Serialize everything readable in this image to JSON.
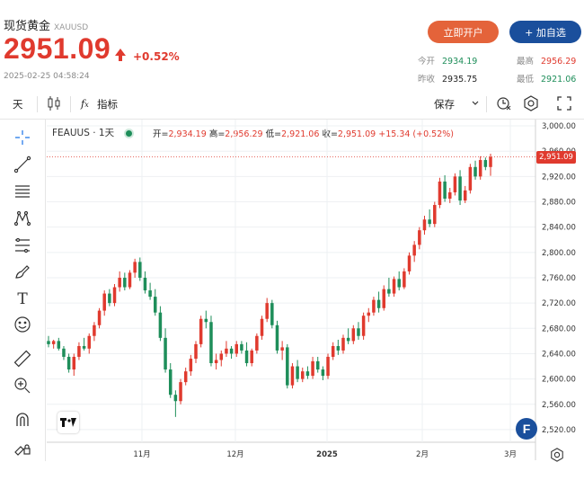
{
  "header": {
    "title": "现货黄金",
    "symbol": "XAUUSD",
    "price": "2951.09",
    "change": "+0.52%",
    "timestamp": "2025-02-25 04:58:24",
    "open_account_label": "立即开户",
    "watchlist_label": "+ 加自选",
    "stats": {
      "open_label": "今开",
      "open_value": "2934.19",
      "high_label": "最高",
      "high_value": "2956.29",
      "prev_label": "昨收",
      "prev_value": "2935.75",
      "low_label": "最低",
      "low_value": "2921.06"
    }
  },
  "toolbar": {
    "interval_label": "天",
    "indicators_label": "指标",
    "save_label": "保存"
  },
  "legend": {
    "symbol_label": "FEAUUS · 1天",
    "open_label": "开=",
    "open_value": "2,934.19",
    "high_label": "高=",
    "high_value": "2,956.29",
    "low_label": "低=",
    "low_value": "2,921.06",
    "close_label": "收=",
    "close_value": "2,951.09",
    "change_value": "+15.34 (+0.52%)"
  },
  "last_price_tag": "2,951.09",
  "colors": {
    "up": "#e03a2e",
    "down": "#1e8e5a",
    "accent": "#1a4f9c",
    "open_btn": "#e4633a"
  },
  "chart_data": {
    "type": "candlestick",
    "x_tick_labels": [
      "11月",
      "12月",
      "2025",
      "2月",
      "3月"
    ],
    "y_tick_labels": [
      "3,000.00",
      "2,960.00",
      "2,920.00",
      "2,880.00",
      "2,840.00",
      "2,800.00",
      "2,760.00",
      "2,720.00",
      "2,680.00",
      "2,640.00",
      "2,600.00",
      "2,560.00",
      "2,520.00"
    ],
    "ylim": [
      2500,
      3010
    ],
    "candles": [
      [
        2660,
        2668,
        2650,
        2655
      ],
      [
        2655,
        2662,
        2648,
        2660
      ],
      [
        2660,
        2665,
        2645,
        2648
      ],
      [
        2648,
        2652,
        2630,
        2635
      ],
      [
        2635,
        2640,
        2610,
        2615
      ],
      [
        2615,
        2640,
        2605,
        2635
      ],
      [
        2635,
        2658,
        2630,
        2652
      ],
      [
        2652,
        2665,
        2645,
        2648
      ],
      [
        2648,
        2672,
        2640,
        2668
      ],
      [
        2668,
        2690,
        2660,
        2685
      ],
      [
        2685,
        2712,
        2680,
        2708
      ],
      [
        2708,
        2740,
        2700,
        2735
      ],
      [
        2735,
        2742,
        2715,
        2720
      ],
      [
        2720,
        2750,
        2715,
        2745
      ],
      [
        2745,
        2770,
        2738,
        2760
      ],
      [
        2760,
        2768,
        2740,
        2745
      ],
      [
        2745,
        2772,
        2742,
        2768
      ],
      [
        2768,
        2790,
        2760,
        2785
      ],
      [
        2785,
        2792,
        2755,
        2760
      ],
      [
        2760,
        2770,
        2735,
        2740
      ],
      [
        2740,
        2752,
        2725,
        2730
      ],
      [
        2730,
        2742,
        2700,
        2705
      ],
      [
        2705,
        2715,
        2660,
        2665
      ],
      [
        2665,
        2680,
        2610,
        2615
      ],
      [
        2615,
        2625,
        2570,
        2575
      ],
      [
        2575,
        2582,
        2540,
        2565
      ],
      [
        2565,
        2600,
        2560,
        2595
      ],
      [
        2595,
        2618,
        2590,
        2612
      ],
      [
        2612,
        2638,
        2605,
        2632
      ],
      [
        2632,
        2660,
        2625,
        2655
      ],
      [
        2655,
        2700,
        2650,
        2695
      ],
      [
        2695,
        2708,
        2680,
        2690
      ],
      [
        2690,
        2700,
        2620,
        2625
      ],
      [
        2625,
        2640,
        2615,
        2630
      ],
      [
        2630,
        2645,
        2620,
        2640
      ],
      [
        2640,
        2660,
        2635,
        2648
      ],
      [
        2648,
        2652,
        2632,
        2640
      ],
      [
        2640,
        2660,
        2635,
        2655
      ],
      [
        2655,
        2660,
        2640,
        2645
      ],
      [
        2645,
        2658,
        2620,
        2625
      ],
      [
        2625,
        2648,
        2620,
        2645
      ],
      [
        2645,
        2672,
        2640,
        2668
      ],
      [
        2668,
        2700,
        2662,
        2695
      ],
      [
        2695,
        2728,
        2690,
        2720
      ],
      [
        2720,
        2725,
        2680,
        2685
      ],
      [
        2685,
        2692,
        2640,
        2645
      ],
      [
        2645,
        2660,
        2630,
        2650
      ],
      [
        2650,
        2655,
        2585,
        2590
      ],
      [
        2590,
        2625,
        2585,
        2620
      ],
      [
        2620,
        2630,
        2595,
        2600
      ],
      [
        2600,
        2618,
        2595,
        2612
      ],
      [
        2612,
        2620,
        2600,
        2605
      ],
      [
        2605,
        2635,
        2600,
        2628
      ],
      [
        2628,
        2635,
        2610,
        2615
      ],
      [
        2615,
        2620,
        2598,
        2605
      ],
      [
        2605,
        2640,
        2600,
        2635
      ],
      [
        2635,
        2658,
        2630,
        2652
      ],
      [
        2652,
        2662,
        2638,
        2645
      ],
      [
        2645,
        2670,
        2640,
        2665
      ],
      [
        2665,
        2680,
        2655,
        2660
      ],
      [
        2660,
        2685,
        2655,
        2680
      ],
      [
        2680,
        2690,
        2662,
        2668
      ],
      [
        2668,
        2705,
        2662,
        2700
      ],
      [
        2700,
        2712,
        2690,
        2705
      ],
      [
        2705,
        2730,
        2700,
        2725
      ],
      [
        2725,
        2738,
        2705,
        2712
      ],
      [
        2712,
        2748,
        2708,
        2742
      ],
      [
        2742,
        2760,
        2730,
        2735
      ],
      [
        2735,
        2762,
        2730,
        2758
      ],
      [
        2758,
        2770,
        2740,
        2745
      ],
      [
        2745,
        2775,
        2742,
        2770
      ],
      [
        2770,
        2800,
        2765,
        2795
      ],
      [
        2795,
        2818,
        2785,
        2812
      ],
      [
        2812,
        2840,
        2805,
        2835
      ],
      [
        2835,
        2858,
        2828,
        2852
      ],
      [
        2852,
        2868,
        2840,
        2845
      ],
      [
        2845,
        2880,
        2840,
        2875
      ],
      [
        2875,
        2918,
        2870,
        2912
      ],
      [
        2912,
        2922,
        2880,
        2885
      ],
      [
        2885,
        2902,
        2878,
        2895
      ],
      [
        2895,
        2925,
        2890,
        2920
      ],
      [
        2920,
        2930,
        2875,
        2882
      ],
      [
        2882,
        2905,
        2878,
        2898
      ],
      [
        2898,
        2940,
        2893,
        2935
      ],
      [
        2935,
        2945,
        2915,
        2920
      ],
      [
        2920,
        2952,
        2915,
        2946
      ],
      [
        2946,
        2950,
        2930,
        2935
      ],
      [
        2935,
        2956,
        2921,
        2951
      ]
    ]
  }
}
